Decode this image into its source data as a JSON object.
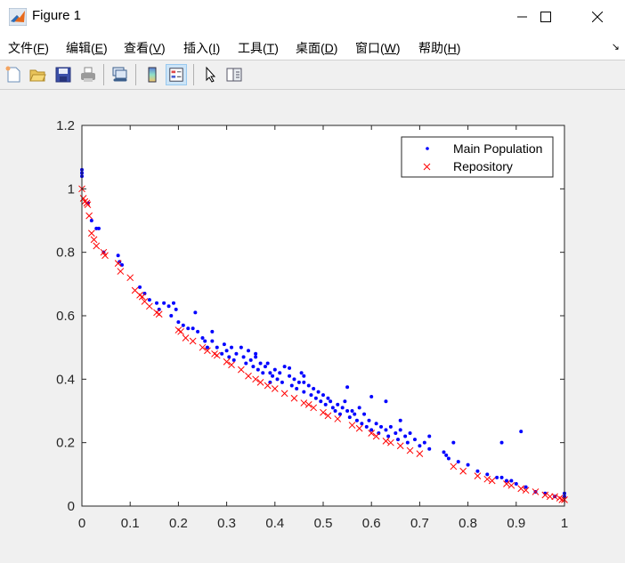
{
  "window": {
    "title": "Figure 1",
    "controls": {
      "minimize": "minimize",
      "maximize": "maximize",
      "close": "close"
    }
  },
  "menubar": {
    "items": [
      {
        "label": "文件(",
        "key": "F",
        "end": ")"
      },
      {
        "label": "编辑(",
        "key": "E",
        "end": ")"
      },
      {
        "label": "查看(",
        "key": "V",
        "end": ")"
      },
      {
        "label": "插入(",
        "key": "I",
        "end": ")"
      },
      {
        "label": "工具(",
        "key": "T",
        "end": ")"
      },
      {
        "label": "桌面(",
        "key": "D",
        "end": ")"
      },
      {
        "label": "窗口(",
        "key": "W",
        "end": ")"
      },
      {
        "label": "帮助(",
        "key": "H",
        "end": ")"
      }
    ]
  },
  "toolbar": {
    "buttons": [
      "new-figure",
      "open-file",
      "save",
      "print",
      "link-plot",
      "insert-colorbar",
      "insert-legend",
      "edit-plot-pointer",
      "property-inspector"
    ],
    "active": "insert-legend"
  },
  "colors": {
    "main_population": "#0000ff",
    "repository": "#ff0000",
    "axes": "#262626",
    "background": "#f0f0f0"
  },
  "chart_data": {
    "type": "scatter",
    "title": "",
    "xlabel": "",
    "ylabel": "",
    "xlim": [
      0,
      1
    ],
    "ylim": [
      0,
      1.2
    ],
    "xticks": [
      "0",
      "0.1",
      "0.2",
      "0.3",
      "0.4",
      "0.5",
      "0.6",
      "0.7",
      "0.8",
      "0.9",
      "1"
    ],
    "yticks": [
      "0",
      "0.2",
      "0.4",
      "0.6",
      "0.8",
      "1",
      "1.2"
    ],
    "grid": false,
    "legend_position": "northeast",
    "legend": [
      "Main Population",
      "Repository"
    ],
    "series": [
      {
        "name": "Main Population",
        "marker": "dot",
        "color": "#0000ff",
        "points": [
          [
            0.0,
            1.05
          ],
          [
            0.0,
            1.04
          ],
          [
            0.0,
            1.06
          ],
          [
            0.013,
            0.955
          ],
          [
            0.02,
            0.9
          ],
          [
            0.03,
            0.875
          ],
          [
            0.035,
            0.875
          ],
          [
            0.045,
            0.8
          ],
          [
            0.075,
            0.79
          ],
          [
            0.078,
            0.77
          ],
          [
            0.083,
            0.76
          ],
          [
            0.12,
            0.69
          ],
          [
            0.13,
            0.67
          ],
          [
            0.14,
            0.65
          ],
          [
            0.155,
            0.64
          ],
          [
            0.16,
            0.62
          ],
          [
            0.17,
            0.64
          ],
          [
            0.18,
            0.63
          ],
          [
            0.185,
            0.6
          ],
          [
            0.19,
            0.64
          ],
          [
            0.195,
            0.62
          ],
          [
            0.2,
            0.58
          ],
          [
            0.21,
            0.57
          ],
          [
            0.22,
            0.56
          ],
          [
            0.23,
            0.56
          ],
          [
            0.235,
            0.61
          ],
          [
            0.24,
            0.55
          ],
          [
            0.25,
            0.53
          ],
          [
            0.255,
            0.52
          ],
          [
            0.26,
            0.5
          ],
          [
            0.27,
            0.52
          ],
          [
            0.28,
            0.5
          ],
          [
            0.29,
            0.48
          ],
          [
            0.295,
            0.51
          ],
          [
            0.3,
            0.49
          ],
          [
            0.305,
            0.47
          ],
          [
            0.31,
            0.5
          ],
          [
            0.315,
            0.46
          ],
          [
            0.32,
            0.48
          ],
          [
            0.33,
            0.5
          ],
          [
            0.335,
            0.47
          ],
          [
            0.34,
            0.45
          ],
          [
            0.345,
            0.49
          ],
          [
            0.35,
            0.46
          ],
          [
            0.355,
            0.44
          ],
          [
            0.36,
            0.47
          ],
          [
            0.365,
            0.43
          ],
          [
            0.37,
            0.45
          ],
          [
            0.375,
            0.42
          ],
          [
            0.38,
            0.44
          ],
          [
            0.385,
            0.45
          ],
          [
            0.39,
            0.42
          ],
          [
            0.395,
            0.41
          ],
          [
            0.4,
            0.43
          ],
          [
            0.405,
            0.4
          ],
          [
            0.41,
            0.42
          ],
          [
            0.415,
            0.39
          ],
          [
            0.42,
            0.44
          ],
          [
            0.43,
            0.41
          ],
          [
            0.435,
            0.38
          ],
          [
            0.44,
            0.4
          ],
          [
            0.445,
            0.37
          ],
          [
            0.45,
            0.39
          ],
          [
            0.455,
            0.42
          ],
          [
            0.46,
            0.36
          ],
          [
            0.47,
            0.38
          ],
          [
            0.475,
            0.35
          ],
          [
            0.48,
            0.37
          ],
          [
            0.485,
            0.34
          ],
          [
            0.49,
            0.36
          ],
          [
            0.495,
            0.33
          ],
          [
            0.5,
            0.35
          ],
          [
            0.505,
            0.32
          ],
          [
            0.51,
            0.34
          ],
          [
            0.515,
            0.33
          ],
          [
            0.52,
            0.31
          ],
          [
            0.525,
            0.3
          ],
          [
            0.53,
            0.32
          ],
          [
            0.535,
            0.29
          ],
          [
            0.54,
            0.31
          ],
          [
            0.545,
            0.33
          ],
          [
            0.55,
            0.3
          ],
          [
            0.555,
            0.28
          ],
          [
            0.56,
            0.3
          ],
          [
            0.565,
            0.29
          ],
          [
            0.57,
            0.27
          ],
          [
            0.575,
            0.31
          ],
          [
            0.58,
            0.26
          ],
          [
            0.585,
            0.29
          ],
          [
            0.59,
            0.25
          ],
          [
            0.595,
            0.27
          ],
          [
            0.6,
            0.24
          ],
          [
            0.61,
            0.26
          ],
          [
            0.615,
            0.23
          ],
          [
            0.62,
            0.25
          ],
          [
            0.63,
            0.24
          ],
          [
            0.635,
            0.22
          ],
          [
            0.64,
            0.25
          ],
          [
            0.65,
            0.23
          ],
          [
            0.655,
            0.21
          ],
          [
            0.66,
            0.24
          ],
          [
            0.67,
            0.22
          ],
          [
            0.675,
            0.2
          ],
          [
            0.68,
            0.23
          ],
          [
            0.69,
            0.21
          ],
          [
            0.7,
            0.19
          ],
          [
            0.71,
            0.2
          ],
          [
            0.72,
            0.18
          ],
          [
            0.75,
            0.17
          ],
          [
            0.755,
            0.16
          ],
          [
            0.76,
            0.15
          ],
          [
            0.78,
            0.14
          ],
          [
            0.8,
            0.13
          ],
          [
            0.82,
            0.11
          ],
          [
            0.84,
            0.1
          ],
          [
            0.86,
            0.09
          ],
          [
            0.87,
            0.09
          ],
          [
            0.88,
            0.08
          ],
          [
            0.89,
            0.08
          ],
          [
            0.9,
            0.07
          ],
          [
            0.92,
            0.06
          ],
          [
            0.94,
            0.045
          ],
          [
            0.96,
            0.04
          ],
          [
            0.98,
            0.03
          ],
          [
            1.0,
            0.03
          ],
          [
            1.0,
            0.04
          ],
          [
            0.55,
            0.375
          ],
          [
            0.6,
            0.345
          ],
          [
            0.46,
            0.39
          ],
          [
            0.43,
            0.435
          ],
          [
            0.63,
            0.33
          ],
          [
            0.72,
            0.22
          ],
          [
            0.77,
            0.2
          ],
          [
            0.87,
            0.2
          ],
          [
            0.91,
            0.235
          ],
          [
            0.39,
            0.39
          ],
          [
            0.27,
            0.55
          ],
          [
            0.36,
            0.48
          ],
          [
            0.46,
            0.41
          ],
          [
            0.66,
            0.27
          ]
        ]
      },
      {
        "name": "Repository",
        "marker": "x",
        "color": "#ff0000",
        "points": [
          [
            0.0,
            1.0
          ],
          [
            0.003,
            0.97
          ],
          [
            0.006,
            0.96
          ],
          [
            0.01,
            0.955
          ],
          [
            0.012,
            0.95
          ],
          [
            0.015,
            0.915
          ],
          [
            0.02,
            0.86
          ],
          [
            0.025,
            0.84
          ],
          [
            0.03,
            0.82
          ],
          [
            0.045,
            0.8
          ],
          [
            0.048,
            0.79
          ],
          [
            0.075,
            0.765
          ],
          [
            0.08,
            0.74
          ],
          [
            0.1,
            0.72
          ],
          [
            0.11,
            0.68
          ],
          [
            0.12,
            0.665
          ],
          [
            0.125,
            0.66
          ],
          [
            0.13,
            0.645
          ],
          [
            0.14,
            0.63
          ],
          [
            0.155,
            0.61
          ],
          [
            0.16,
            0.605
          ],
          [
            0.2,
            0.555
          ],
          [
            0.205,
            0.55
          ],
          [
            0.215,
            0.53
          ],
          [
            0.23,
            0.52
          ],
          [
            0.25,
            0.5
          ],
          [
            0.26,
            0.49
          ],
          [
            0.275,
            0.48
          ],
          [
            0.28,
            0.475
          ],
          [
            0.3,
            0.455
          ],
          [
            0.31,
            0.445
          ],
          [
            0.33,
            0.43
          ],
          [
            0.345,
            0.41
          ],
          [
            0.36,
            0.4
          ],
          [
            0.37,
            0.39
          ],
          [
            0.385,
            0.38
          ],
          [
            0.4,
            0.37
          ],
          [
            0.42,
            0.355
          ],
          [
            0.44,
            0.34
          ],
          [
            0.46,
            0.325
          ],
          [
            0.47,
            0.32
          ],
          [
            0.48,
            0.31
          ],
          [
            0.5,
            0.295
          ],
          [
            0.51,
            0.285
          ],
          [
            0.53,
            0.275
          ],
          [
            0.56,
            0.255
          ],
          [
            0.575,
            0.245
          ],
          [
            0.6,
            0.23
          ],
          [
            0.61,
            0.22
          ],
          [
            0.63,
            0.205
          ],
          [
            0.64,
            0.2
          ],
          [
            0.66,
            0.19
          ],
          [
            0.68,
            0.175
          ],
          [
            0.7,
            0.165
          ],
          [
            0.77,
            0.125
          ],
          [
            0.79,
            0.11
          ],
          [
            0.82,
            0.095
          ],
          [
            0.84,
            0.085
          ],
          [
            0.85,
            0.08
          ],
          [
            0.88,
            0.07
          ],
          [
            0.89,
            0.065
          ],
          [
            0.91,
            0.055
          ],
          [
            0.92,
            0.05
          ],
          [
            0.94,
            0.045
          ],
          [
            0.96,
            0.035
          ],
          [
            0.97,
            0.03
          ],
          [
            0.98,
            0.03
          ],
          [
            0.99,
            0.025
          ],
          [
            0.995,
            0.02
          ],
          [
            1.0,
            0.02
          ]
        ]
      }
    ]
  }
}
